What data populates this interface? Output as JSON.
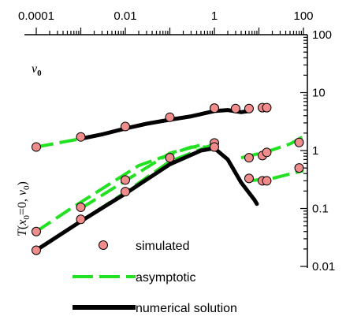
{
  "chart_data": {
    "type": "scatter",
    "x_scale": "log",
    "y_scale": "log",
    "xlim": [
      0.0001,
      100
    ],
    "ylim": [
      0.01,
      100
    ],
    "x_axis_position": "top",
    "y_axis_position": "right",
    "x_ticks": [
      0.0001,
      0.01,
      1,
      100
    ],
    "x_tick_labels": [
      "0.0001",
      "0.01",
      "1",
      "100"
    ],
    "y_ticks": [
      100,
      10,
      1,
      0.1,
      0.01
    ],
    "y_tick_labels": [
      "100",
      "10",
      "1",
      "0.1",
      "0.01"
    ],
    "xlabel_parts": [
      "v",
      "0"
    ],
    "ylabel_parts": [
      "T",
      "(",
      "x",
      "0",
      "=0, ",
      "v",
      "0",
      ")"
    ],
    "grid": false,
    "legend_placement": "bottom-center",
    "colors": {
      "simulated_fill": "#f08c8c",
      "simulated_stroke": "#000000",
      "asymptotic": "#22e022",
      "numerical": "#000000"
    },
    "series": [
      {
        "name": "simulated",
        "kind": "markers",
        "points": [
          [
            0.0001,
            1.15
          ],
          [
            0.001,
            1.72
          ],
          [
            0.01,
            2.6
          ],
          [
            0.1,
            3.75
          ],
          [
            1,
            5.4
          ],
          [
            3,
            5.3
          ],
          [
            6,
            5.3
          ],
          [
            12,
            5.5
          ],
          [
            15,
            5.5
          ],
          [
            1,
            1.35
          ],
          [
            1,
            1.15
          ],
          [
            6,
            0.75
          ],
          [
            12,
            0.82
          ],
          [
            15,
            0.93
          ],
          [
            80,
            1.38
          ],
          [
            6,
            0.33
          ],
          [
            12,
            0.3
          ],
          [
            15,
            0.3
          ],
          [
            80,
            0.5
          ],
          [
            0.0001,
            0.04
          ],
          [
            0.001,
            0.105
          ],
          [
            0.01,
            0.31
          ],
          [
            0.1,
            0.75
          ],
          [
            0.0001,
            0.019
          ],
          [
            0.001,
            0.065
          ],
          [
            0.01,
            0.195
          ]
        ]
      },
      {
        "name": "asymptotic",
        "kind": "dashed-lines",
        "lines": [
          [
            [
              0.0001,
              1.15
            ],
            [
              0.001,
              1.6
            ]
          ],
          [
            [
              0.0001,
              0.04
            ],
            [
              0.0006,
              0.1
            ],
            [
              0.02,
              0.55
            ],
            [
              0.3,
              1.15
            ],
            [
              1.2,
              1.15
            ]
          ],
          [
            [
              0.0001,
              0.019
            ],
            [
              0.001,
              0.06
            ],
            [
              0.01,
              0.19
            ],
            [
              0.1,
              0.65
            ],
            [
              1,
              1.3
            ]
          ],
          [
            [
              0.001,
              0.1
            ],
            [
              0.01,
              0.3
            ],
            [
              0.1,
              0.9
            ],
            [
              0.5,
              1.25
            ]
          ],
          [
            [
              4,
              0.75
            ],
            [
              15,
              0.95
            ],
            [
              50,
              1.3
            ],
            [
              100,
              1.75
            ]
          ],
          [
            [
              6,
              0.3
            ],
            [
              20,
              0.33
            ],
            [
              100,
              0.45
            ]
          ]
        ]
      },
      {
        "name": "numerical solution",
        "kind": "solid-lines",
        "lines": [
          [
            [
              0.001,
              1.6
            ],
            [
              0.003,
              1.9
            ],
            [
              0.01,
              2.4
            ],
            [
              0.03,
              2.9
            ],
            [
              0.1,
              3.4
            ],
            [
              0.3,
              3.9
            ],
            [
              1,
              4.8
            ],
            [
              2,
              5.0
            ],
            [
              4,
              4.6
            ],
            [
              6,
              4.8
            ]
          ],
          [
            [
              0.0001,
              0.019
            ],
            [
              0.001,
              0.06
            ],
            [
              0.01,
              0.18
            ],
            [
              0.1,
              0.58
            ],
            [
              0.5,
              1.0
            ],
            [
              1,
              1.1
            ],
            [
              2,
              0.7
            ],
            [
              4,
              0.28
            ],
            [
              8,
              0.14
            ],
            [
              9,
              0.12
            ]
          ]
        ]
      }
    ]
  }
}
